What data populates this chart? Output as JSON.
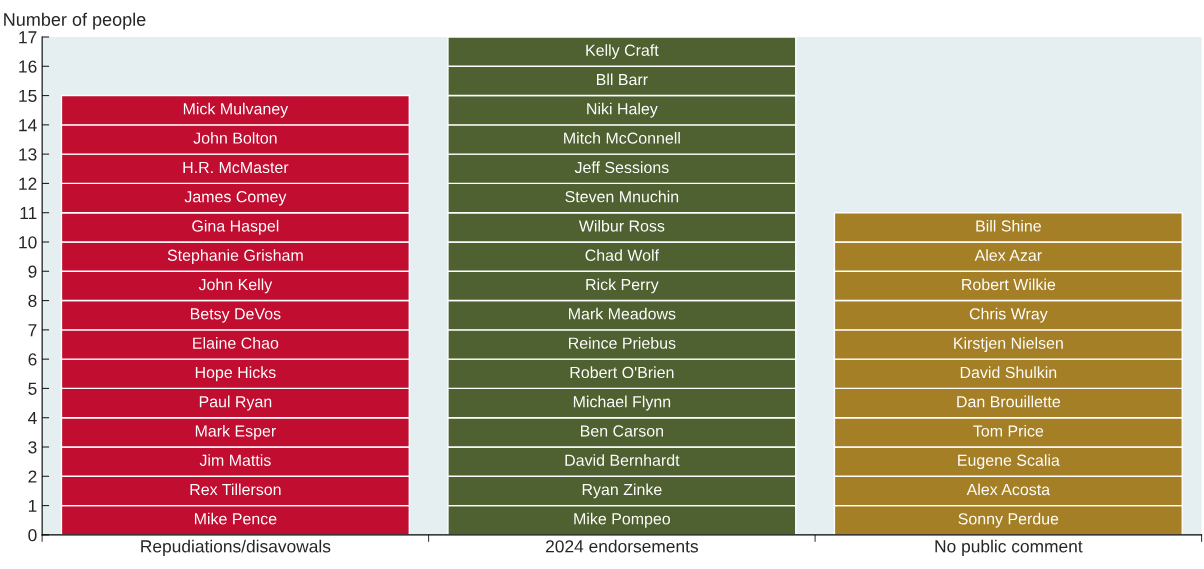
{
  "chart_data": {
    "type": "bar",
    "stacked": true,
    "ylabel": "Number of people",
    "categories": [
      "Repudiations/disavowals",
      "2024 endorsements",
      "No public comment"
    ],
    "ylim": [
      0,
      17
    ],
    "yticks": [
      0,
      1,
      2,
      3,
      4,
      5,
      6,
      7,
      8,
      9,
      10,
      11,
      12,
      13,
      14,
      15,
      16,
      17
    ],
    "grid": false,
    "legend": false,
    "series": [
      {
        "values": [
          1,
          1,
          1
        ],
        "colors": [
          "#c00d30",
          "#4f6130",
          "#a57f25"
        ],
        "value_labels": [
          "Mike Pence",
          "Mike Pompeo",
          "Sonny Perdue"
        ]
      },
      {
        "values": [
          1,
          1,
          1
        ],
        "colors": [
          "#c00d30",
          "#4f6130",
          "#a57f25"
        ],
        "value_labels": [
          "Rex Tillerson",
          "Ryan Zinke",
          "Alex Acosta"
        ]
      },
      {
        "values": [
          1,
          1,
          1
        ],
        "colors": [
          "#c00d30",
          "#4f6130",
          "#a57f25"
        ],
        "value_labels": [
          "Jim Mattis",
          "David Bernhardt",
          "Eugene Scalia"
        ]
      },
      {
        "values": [
          1,
          1,
          1
        ],
        "colors": [
          "#c00d30",
          "#4f6130",
          "#a57f25"
        ],
        "value_labels": [
          "Mark Esper",
          "Ben Carson",
          "Tom Price"
        ]
      },
      {
        "values": [
          1,
          1,
          1
        ],
        "colors": [
          "#c00d30",
          "#4f6130",
          "#a57f25"
        ],
        "value_labels": [
          "Paul Ryan",
          "Michael Flynn",
          "Dan Brouillette"
        ]
      },
      {
        "values": [
          1,
          1,
          1
        ],
        "colors": [
          "#c00d30",
          "#4f6130",
          "#a57f25"
        ],
        "value_labels": [
          "Hope Hicks",
          "Robert O'Brien",
          "David Shulkin"
        ]
      },
      {
        "values": [
          1,
          1,
          1
        ],
        "colors": [
          "#c00d30",
          "#4f6130",
          "#a57f25"
        ],
        "value_labels": [
          "Elaine Chao",
          "Reince Priebus",
          "Kirstjen Nielsen"
        ]
      },
      {
        "values": [
          1,
          1,
          1
        ],
        "colors": [
          "#c00d30",
          "#4f6130",
          "#a57f25"
        ],
        "value_labels": [
          "Betsy DeVos",
          "Mark Meadows",
          "Chris Wray"
        ]
      },
      {
        "values": [
          1,
          1,
          1
        ],
        "colors": [
          "#c00d30",
          "#4f6130",
          "#a57f25"
        ],
        "value_labels": [
          "John Kelly",
          "Rick Perry",
          "Robert Wilkie"
        ]
      },
      {
        "values": [
          1,
          1,
          1
        ],
        "colors": [
          "#c00d30",
          "#4f6130",
          "#a57f25"
        ],
        "value_labels": [
          "Stephanie Grisham",
          "Chad Wolf",
          "Alex Azar"
        ]
      },
      {
        "values": [
          1,
          1,
          1
        ],
        "colors": [
          "#c00d30",
          "#4f6130",
          "#a57f25"
        ],
        "value_labels": [
          "Gina Haspel",
          "Wilbur Ross",
          "Bill Shine"
        ]
      },
      {
        "values": [
          1,
          1,
          null
        ],
        "colors": [
          "#c00d30",
          "#4f6130",
          "#a57f25"
        ],
        "value_labels": [
          "James Comey",
          "Steven Mnuchin",
          null
        ]
      },
      {
        "values": [
          1,
          1,
          null
        ],
        "colors": [
          "#c00d30",
          "#4f6130",
          "#a57f25"
        ],
        "value_labels": [
          "H.R. McMaster",
          "Jeff Sessions",
          null
        ]
      },
      {
        "values": [
          1,
          1,
          null
        ],
        "colors": [
          "#c00d30",
          "#4f6130",
          "#a57f25"
        ],
        "value_labels": [
          "John Bolton",
          "Mitch McConnell",
          null
        ]
      },
      {
        "values": [
          1,
          1,
          null
        ],
        "colors": [
          "#c00d30",
          "#4f6130",
          "#a57f25"
        ],
        "value_labels": [
          "Mick Mulvaney",
          "Niki Haley",
          null
        ]
      },
      {
        "values": [
          null,
          1,
          null
        ],
        "colors": [
          "#c00d30",
          "#4f6130",
          "#a57f25"
        ],
        "value_labels": [
          null,
          "Bll Barr",
          null
        ]
      },
      {
        "values": [
          null,
          1,
          null
        ],
        "colors": [
          "#c00d30",
          "#4f6130",
          "#a57f25"
        ],
        "value_labels": [
          null,
          "Kelly Craft",
          null
        ]
      }
    ]
  }
}
